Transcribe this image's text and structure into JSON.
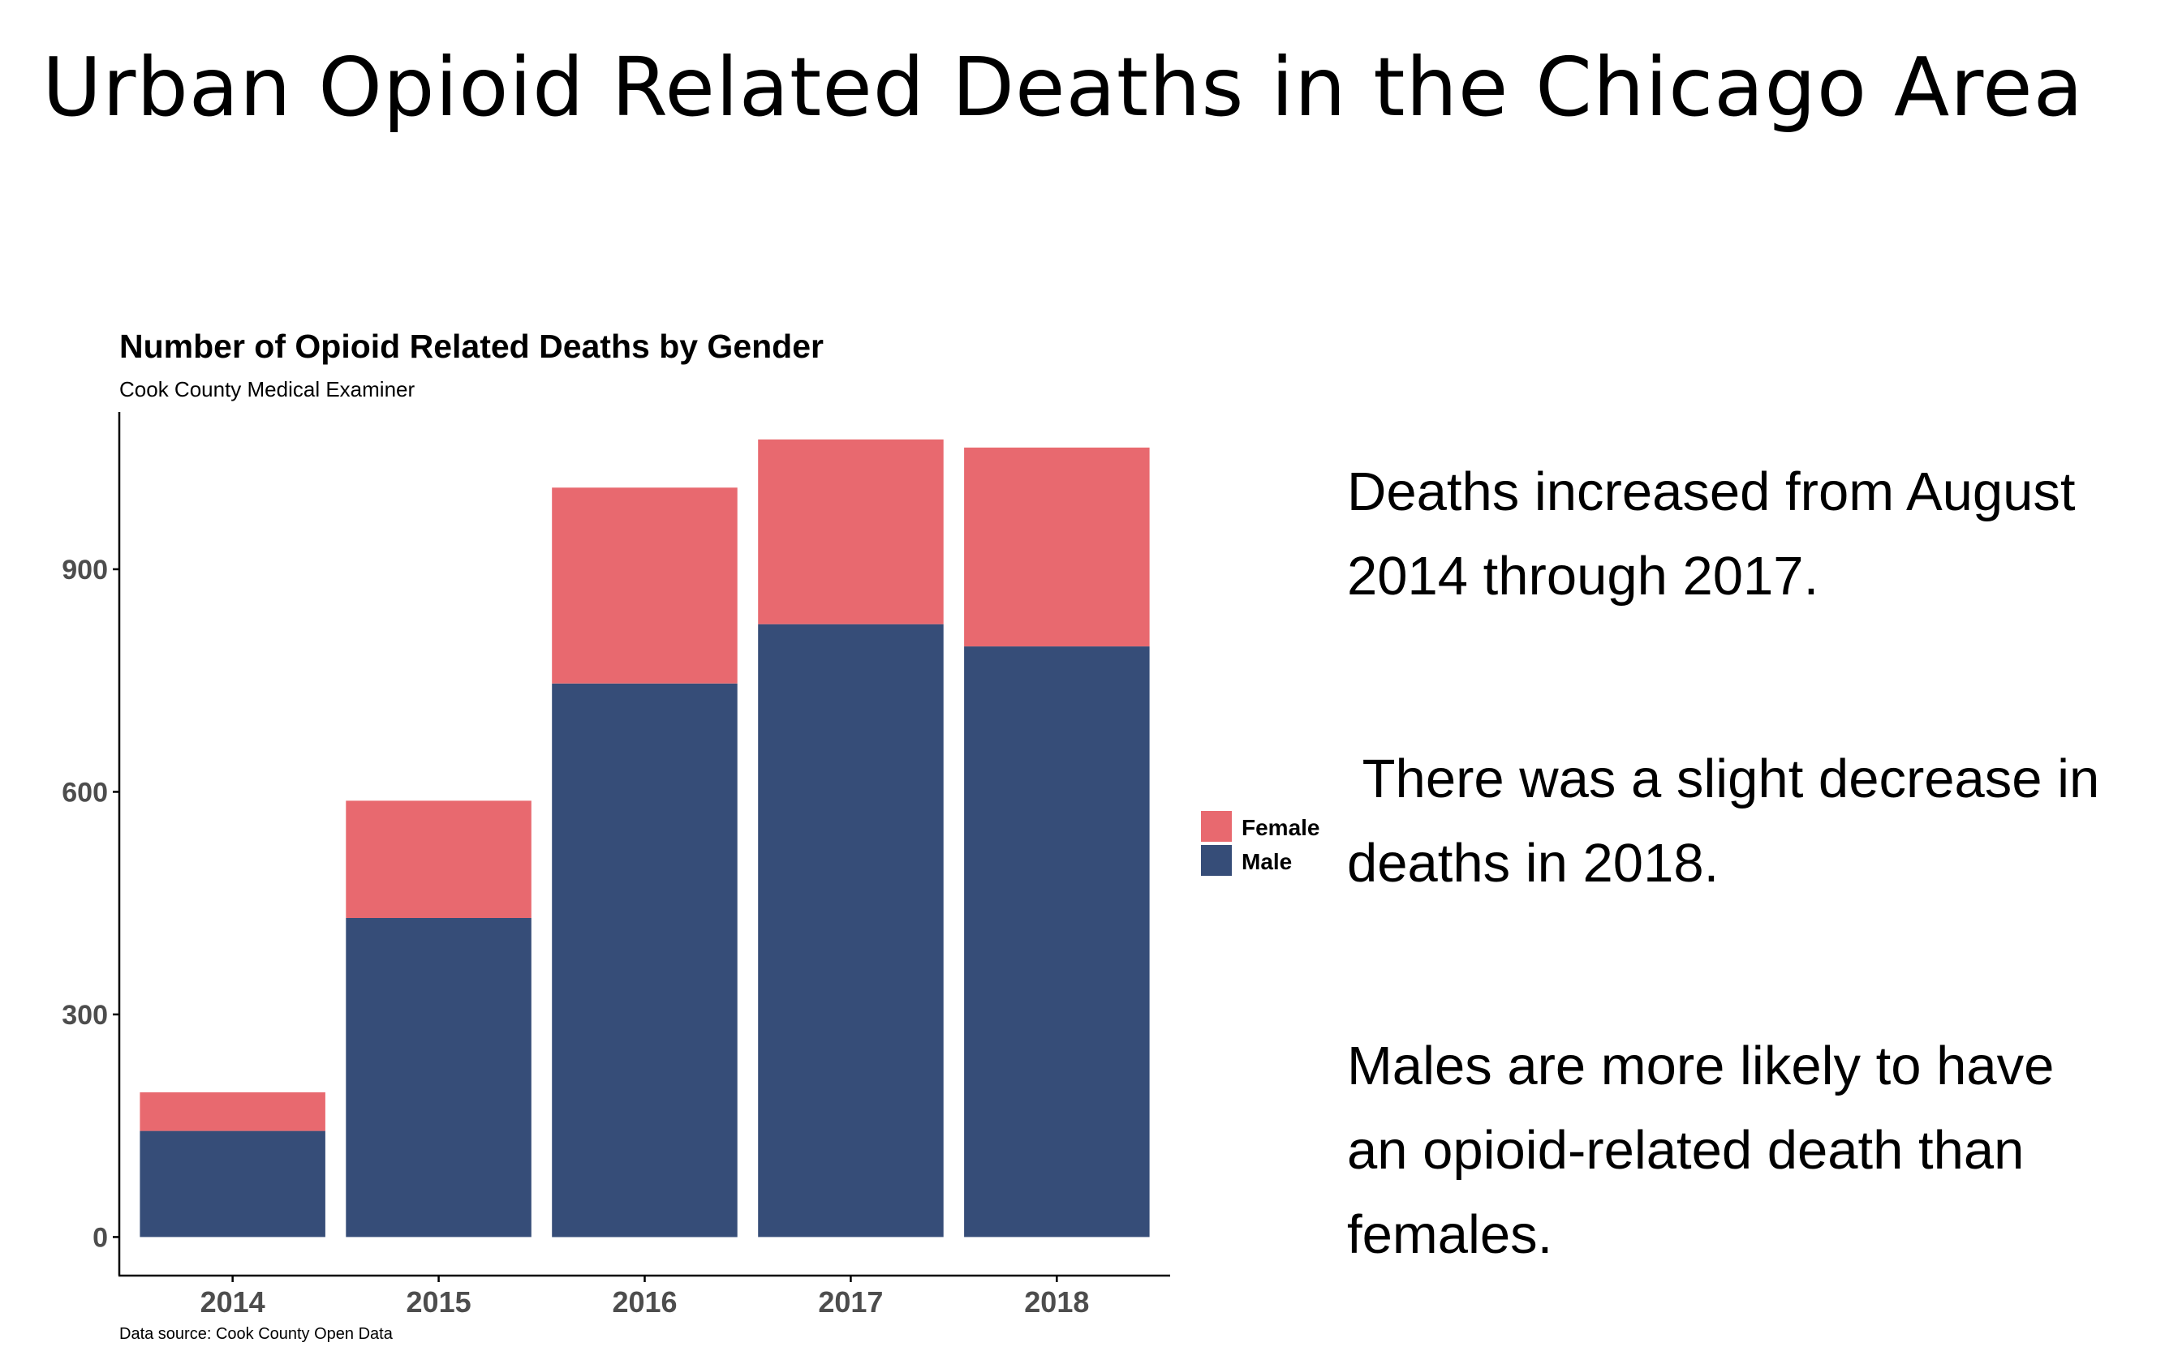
{
  "page_title": "Urban Opioid Related Deaths in the Chicago Area",
  "notes": [
    "Deaths increased from August 2014 through 2017.",
    " There was a slight decrease in deaths in 2018.",
    "Males are more likely to have an opioid-related death than females."
  ],
  "colors": {
    "female": "#e8696f",
    "male": "#364d78",
    "axis": "#000000",
    "tick_text": "#4d4d4d"
  },
  "chart_data": {
    "type": "bar",
    "stacked": true,
    "title": "Number of Opioid Related Deaths by Gender",
    "subtitle": "Cook County Medical Examiner",
    "caption": "Data source: Cook County Open Data",
    "xlabel": "",
    "ylabel": "",
    "categories": [
      "2014",
      "2015",
      "2016",
      "2017",
      "2018"
    ],
    "series": [
      {
        "name": "Male",
        "color": "#364d78",
        "values": [
          143,
          430,
          746,
          826,
          796
        ]
      },
      {
        "name": "Female",
        "color": "#e8696f",
        "values": [
          52,
          158,
          264,
          249,
          268
        ]
      }
    ],
    "legend_order": [
      "Female",
      "Male"
    ],
    "yticks": [
      0,
      300,
      600,
      900
    ],
    "ylim": [
      -52,
      1112
    ],
    "grid": false,
    "legend_position": "right"
  }
}
